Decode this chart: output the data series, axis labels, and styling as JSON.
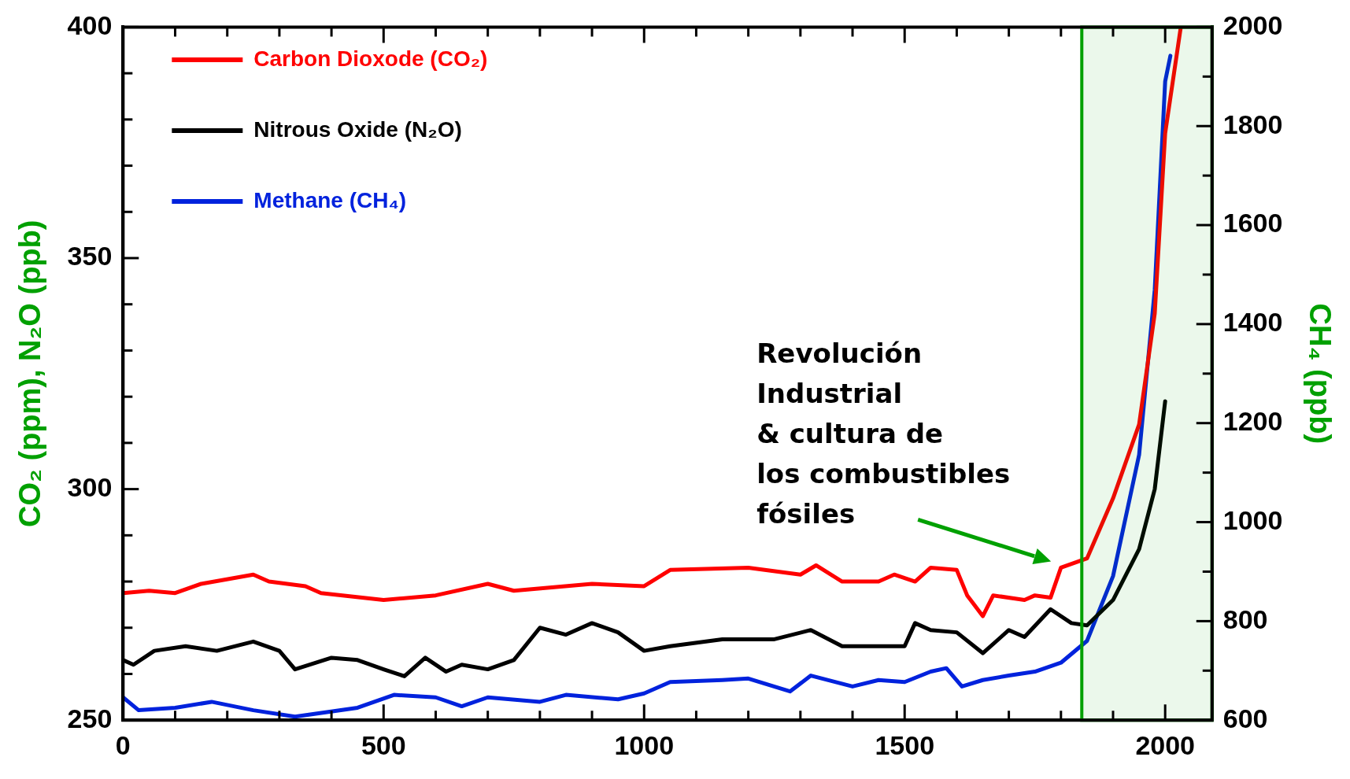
{
  "chart_data": {
    "type": "line",
    "xlim": [
      0,
      2090
    ],
    "ylim": [
      250,
      400
    ],
    "y2lim": [
      600,
      2000
    ],
    "xticks": [
      0,
      {
        "value": 100,
        "label": null
      },
      {
        "value": 200,
        "label": null
      },
      {
        "value": 300,
        "label": null
      },
      {
        "value": 400,
        "label": null
      },
      500,
      {
        "value": 600,
        "label": null
      },
      {
        "value": 700,
        "label": null
      },
      {
        "value": 800,
        "label": null
      },
      {
        "value": 900,
        "label": null
      },
      1000,
      {
        "value": 1100,
        "label": null
      },
      {
        "value": 1200,
        "label": null
      },
      {
        "value": 1300,
        "label": null
      },
      {
        "value": 1400,
        "label": null
      },
      1500,
      {
        "value": 1600,
        "label": null
      },
      {
        "value": 1700,
        "label": null
      },
      {
        "value": 1800,
        "label": null
      },
      {
        "value": 1900,
        "label": null
      },
      2000
    ],
    "yticks": [
      250,
      {
        "value": 260,
        "label": null
      },
      {
        "value": 270,
        "label": null
      },
      {
        "value": 280,
        "label": null
      },
      {
        "value": 290,
        "label": null
      },
      300,
      {
        "value": 310,
        "label": null
      },
      {
        "value": 320,
        "label": null
      },
      {
        "value": 330,
        "label": null
      },
      {
        "value": 340,
        "label": null
      },
      350,
      {
        "value": 360,
        "label": null
      },
      {
        "value": 370,
        "label": null
      },
      {
        "value": 380,
        "label": null
      },
      {
        "value": 390,
        "label": null
      },
      400
    ],
    "y2ticks": [
      600,
      {
        "value": 700,
        "label": null
      },
      800,
      {
        "value": 900,
        "label": null
      },
      1000,
      {
        "value": 1100,
        "label": null
      },
      1200,
      {
        "value": 1300,
        "label": null
      },
      1400,
      {
        "value": 1500,
        "label": null
      },
      1600,
      {
        "value": 1700,
        "label": null
      },
      1800,
      {
        "value": 1900,
        "label": null
      },
      2000
    ],
    "ylabel": "CO₂ (ppm), N₂O (ppb)",
    "y2label": "CH₄ (ppb)",
    "legend": "top left",
    "grid": false,
    "marker": "none",
    "line_style": "solid",
    "bands": [
      {
        "axis": "x",
        "from": 1840,
        "to": 2090,
        "color": "#00a000"
      }
    ],
    "annotations": [
      {
        "text": "Revolución\nIndustrial\n& cultura de\nlos combustibles\nfósiles",
        "x": 1790,
        "y": 283
      }
    ],
    "series": [
      {
        "name": "Carbon Dioxode (CO₂)",
        "color": "#ff0000",
        "x": [
          0,
          50,
          100,
          150,
          250,
          280,
          350,
          380,
          500,
          600,
          700,
          750,
          900,
          1000,
          1050,
          1200,
          1300,
          1330,
          1380,
          1450,
          1480,
          1520,
          1550,
          1600,
          1620,
          1650,
          1670,
          1730,
          1750,
          1780,
          1800,
          1850,
          1900,
          1950,
          1980,
          2000,
          2030
        ],
        "values": [
          277.5,
          278,
          277.5,
          279.5,
          281.5,
          280,
          279,
          277.5,
          276,
          277,
          279.5,
          278,
          279.5,
          279,
          282.5,
          283,
          281.5,
          283.5,
          280,
          280,
          281.5,
          280,
          283,
          282.5,
          277,
          272.5,
          277,
          276,
          277,
          276.5,
          283,
          285,
          298,
          314,
          338,
          377,
          400
        ]
      },
      {
        "name": "Nitrous Oxide (N₂O)",
        "color": "#000000",
        "x": [
          0,
          20,
          60,
          120,
          180,
          250,
          300,
          330,
          400,
          450,
          500,
          540,
          580,
          620,
          650,
          700,
          750,
          800,
          850,
          900,
          950,
          1000,
          1050,
          1150,
          1250,
          1320,
          1380,
          1450,
          1500,
          1520,
          1550,
          1600,
          1650,
          1700,
          1730,
          1780,
          1820,
          1850,
          1900,
          1950,
          1980,
          2000
        ],
        "values": [
          263,
          262,
          265,
          266,
          265,
          267,
          265,
          261,
          263.5,
          263,
          261,
          259.5,
          263.5,
          260.5,
          262,
          261,
          263,
          270,
          268.5,
          271,
          269,
          265,
          266,
          267.5,
          267.5,
          269.5,
          266,
          266,
          266,
          271,
          269.5,
          269,
          264.5,
          269.5,
          268,
          274,
          271,
          270.5,
          276,
          287,
          300,
          319
        ]
      },
      {
        "name": "Methane (CH₄)",
        "color": "#0022dd",
        "axis": "y2",
        "x": [
          0,
          30,
          100,
          170,
          250,
          330,
          450,
          520,
          600,
          650,
          700,
          800,
          850,
          950,
          1000,
          1050,
          1150,
          1200,
          1280,
          1320,
          1400,
          1450,
          1500,
          1550,
          1580,
          1610,
          1650,
          1700,
          1750,
          1800,
          1850,
          1900,
          1950,
          1980,
          2000,
          2010
        ],
        "values": [
          646,
          620,
          625,
          637,
          620,
          607,
          625,
          651,
          646,
          628,
          646,
          637,
          651,
          642,
          654,
          677,
          681,
          684,
          658,
          690,
          668,
          681,
          677,
          698,
          705,
          668,
          681,
          690,
          698,
          716,
          760,
          891,
          1136,
          1469,
          1890,
          1942
        ]
      }
    ]
  }
}
